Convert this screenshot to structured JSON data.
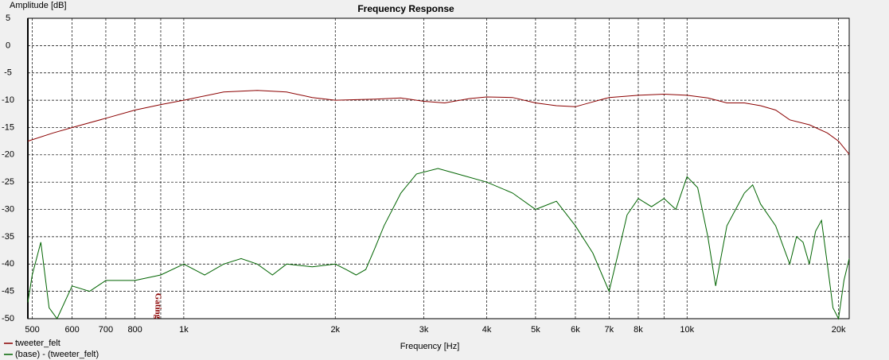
{
  "chart_data": {
    "type": "line",
    "title": "Frequency Response",
    "x_label": "Frequency [Hz]",
    "y_label": "Amplitude [dB]",
    "x_log": true,
    "grid": true,
    "xlim": [
      490,
      21000
    ],
    "ylim": [
      -50,
      5
    ],
    "xticks": [
      500,
      600,
      700,
      800,
      {
        "value": 1000,
        "label": "1k"
      },
      {
        "value": 2000,
        "label": "2k"
      },
      {
        "value": 3000,
        "label": "3k"
      },
      {
        "value": 4000,
        "label": "4k"
      },
      {
        "value": 5000,
        "label": "5k"
      },
      {
        "value": 6000,
        "label": "6k"
      },
      {
        "value": 7000,
        "label": "7k"
      },
      {
        "value": 8000,
        "label": "8k"
      },
      {
        "value": 10000,
        "label": "10k"
      },
      {
        "value": 20000,
        "label": "20k"
      }
    ],
    "minor_xgrid": [
      900,
      9000
    ],
    "yticks": [
      5,
      0,
      -5,
      -10,
      -15,
      -20,
      -25,
      -30,
      -35,
      -40,
      -45,
      -50
    ],
    "annotations": [
      {
        "text": "Gating",
        "x": 900,
        "color": "#8b0000"
      }
    ],
    "series": [
      {
        "name": "tweeter_felt",
        "color": "#8b0000",
        "x": [
          490,
          550,
          600,
          700,
          800,
          900,
          1000,
          1200,
          1400,
          1600,
          1800,
          2000,
          2400,
          2700,
          3000,
          3300,
          3700,
          4000,
          4500,
          5000,
          5500,
          6000,
          6500,
          7000,
          8000,
          9000,
          10000,
          11000,
          12000,
          13000,
          14000,
          15000,
          16000,
          17500,
          19000,
          20000,
          21000
        ],
        "values": [
          -17.5,
          -16,
          -15,
          -13.3,
          -11.8,
          -10.8,
          -10,
          -8.5,
          -8.2,
          -8.5,
          -9.5,
          -10,
          -9.8,
          -9.6,
          -10.2,
          -10.5,
          -9.7,
          -9.4,
          -9.5,
          -10.5,
          -11,
          -11.2,
          -10.3,
          -9.5,
          -9.1,
          -8.9,
          -9.1,
          -9.6,
          -10.5,
          -10.5,
          -11,
          -11.8,
          -13.6,
          -14.5,
          -16,
          -17.5,
          -19.9
        ]
      },
      {
        "name": "(base) - (tweeter_felt)",
        "color": "#006400",
        "x": [
          490,
          500,
          520,
          540,
          560,
          600,
          650,
          700,
          800,
          900,
          1000,
          1100,
          1200,
          1300,
          1400,
          1500,
          1600,
          1800,
          2000,
          2100,
          2200,
          2300,
          2400,
          2500,
          2700,
          2900,
          3200,
          3500,
          4000,
          4500,
          5000,
          5500,
          6000,
          6500,
          7000,
          7300,
          7600,
          8000,
          8500,
          9000,
          9500,
          10000,
          10500,
          11000,
          11400,
          12000,
          13000,
          13500,
          14000,
          15000,
          16000,
          16500,
          17000,
          17500,
          18000,
          18500,
          19000,
          19500,
          20000,
          20500,
          21000
        ],
        "values": [
          -47,
          -42,
          -36,
          -48,
          -50,
          -44,
          -45,
          -43,
          -43,
          -42,
          -40,
          -42,
          -40,
          -39,
          -40,
          -42,
          -40,
          -40.5,
          -40,
          -41,
          -42,
          -41,
          -37,
          -33,
          -27,
          -23.5,
          -22.5,
          -23.5,
          -25,
          -27,
          -30,
          -28.5,
          -33,
          -38,
          -45,
          -38,
          -31,
          -28,
          -29.5,
          -28,
          -30,
          -24,
          -26,
          -35,
          -44,
          -33,
          -27,
          -25.5,
          -29,
          -33,
          -40,
          -35,
          -36,
          -40,
          -34,
          -32,
          -40,
          -48,
          -50,
          -43,
          -39
        ]
      }
    ]
  }
}
